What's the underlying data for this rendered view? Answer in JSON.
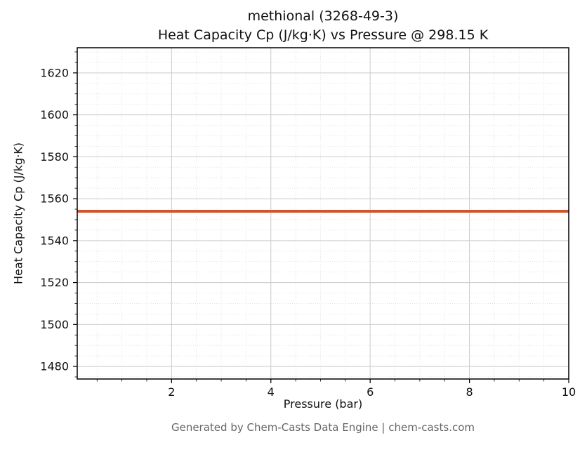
{
  "chart_data": {
    "type": "line",
    "title": "methional (3268-49-3)",
    "subtitle": "Heat Capacity Cp (J/kg·K) vs Pressure @ 298.15 K",
    "xlabel": "Pressure (bar)",
    "ylabel": "Heat Capacity Cp (J/kg·K)",
    "footer": "Generated by Chem-Casts Data Engine | chem-casts.com",
    "xlim": [
      0.1,
      10
    ],
    "ylim": [
      1474,
      1632
    ],
    "xticks": [
      2,
      4,
      6,
      8,
      10
    ],
    "yticks": [
      1480,
      1500,
      1520,
      1540,
      1560,
      1580,
      1600,
      1620
    ],
    "x_minor_step": 0.5,
    "y_minor_step": 5,
    "grid": true,
    "legend": "none",
    "series": [
      {
        "name": "Heat Capacity Cp",
        "x": [
          0.1,
          10
        ],
        "y": [
          1554,
          1554
        ],
        "color": "#d0532b",
        "linewidth": 4
      }
    ],
    "colors": {
      "grid_major": "#cccccc",
      "grid_minor": "#dedede",
      "spine": "#000000",
      "tick_label": "#111111",
      "footer_text": "#666666"
    }
  }
}
